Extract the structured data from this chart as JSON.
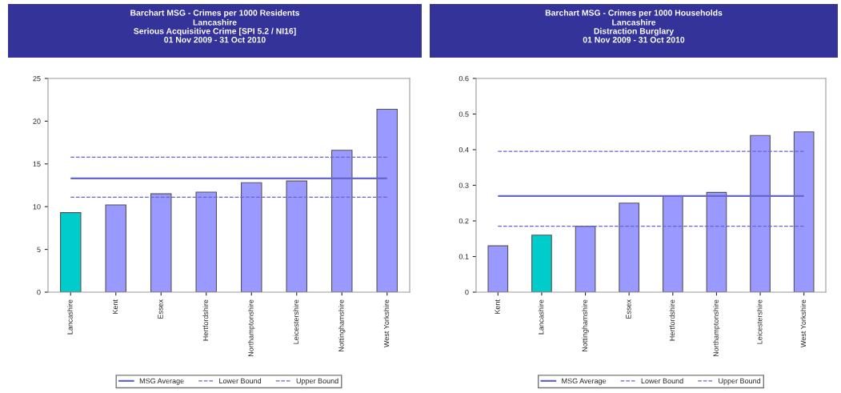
{
  "chart_data": [
    {
      "type": "bar",
      "title": "Barchart MSG - Crimes per 1000 Residents",
      "subtitle": "Lancashire\nSerious Acquisitive Crime [SPI 5.2 / NI16]\n01 Nov 2009 - 31 Oct 2010",
      "categories": [
        "Lancashire",
        "Kent",
        "Essex",
        "Hertfordshire",
        "Northamptonshire",
        "Leicestershire",
        "Nottinghamshire",
        "West Yorkshire"
      ],
      "values": [
        9.3,
        10.2,
        11.5,
        11.7,
        12.8,
        13.0,
        16.6,
        21.4
      ],
      "colors": [
        "#00cccc",
        "#9999ff",
        "#9999ff",
        "#9999ff",
        "#9999ff",
        "#9999ff",
        "#9999ff",
        "#9999ff"
      ],
      "ylim": [
        0,
        25
      ],
      "yticks": [
        0,
        5,
        10,
        15,
        20,
        25
      ],
      "grid": false,
      "legend": "bottom",
      "ref_lines": [
        {
          "axis": "y",
          "value": 13.3,
          "label": "MSG Average",
          "color": "#6666cc",
          "line_style": "solid"
        },
        {
          "axis": "y",
          "value": 11.1,
          "label": "Lower Bound",
          "color": "#6666cc",
          "line_style": "dashed"
        },
        {
          "axis": "y",
          "value": 15.8,
          "label": "Upper Bound",
          "color": "#6666cc",
          "line_style": "dashed"
        }
      ]
    },
    {
      "type": "bar",
      "title": "Barchart MSG - Crimes per 1000 Households",
      "subtitle": "Lancashire\nDistraction Burglary\n01 Nov 2009 - 31 Oct 2010",
      "categories": [
        "Kent",
        "Lancashire",
        "Nottinghamshire",
        "Essex",
        "Hertfordshire",
        "Northamptonshire",
        "Leicestershire",
        "West Yorkshire"
      ],
      "values": [
        0.13,
        0.16,
        0.185,
        0.25,
        0.27,
        0.28,
        0.44,
        0.45
      ],
      "colors": [
        "#9999ff",
        "#00cccc",
        "#9999ff",
        "#9999ff",
        "#9999ff",
        "#9999ff",
        "#9999ff",
        "#9999ff"
      ],
      "ylim": [
        0,
        0.6
      ],
      "yticks": [
        0,
        0.1,
        0.2,
        0.3,
        0.4,
        0.5,
        0.6
      ],
      "grid": false,
      "legend": "bottom",
      "ref_lines": [
        {
          "axis": "y",
          "value": 0.27,
          "label": "MSG Average",
          "color": "#6666cc",
          "line_style": "solid"
        },
        {
          "axis": "y",
          "value": 0.185,
          "label": "Lower Bound",
          "color": "#6666cc",
          "line_style": "dashed"
        },
        {
          "axis": "y",
          "value": 0.395,
          "label": "Upper Bound",
          "color": "#6666cc",
          "line_style": "dashed"
        }
      ]
    }
  ]
}
